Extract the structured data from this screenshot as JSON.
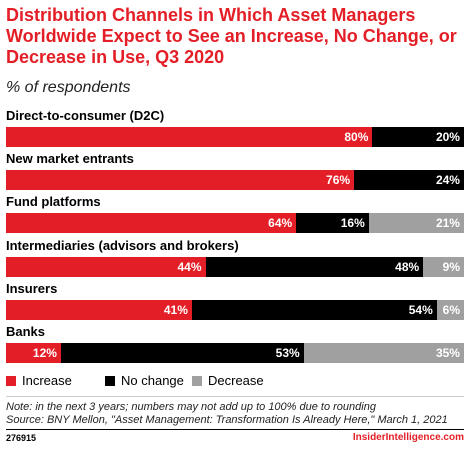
{
  "header": {
    "title": "Distribution Channels in Which Asset Managers Worldwide Expect to See an Increase, No Change, or Decrease in Use, Q3 2020",
    "subtitle": "% of respondents"
  },
  "colors": {
    "increase": "#e41e26",
    "no_change": "#000000",
    "decrease": "#a0a0a0",
    "title": "#e41e26"
  },
  "chart_data": {
    "type": "bar",
    "stacked": true,
    "orientation": "horizontal",
    "categories": [
      "Direct-to-consumer (D2C)",
      "New market entrants",
      "Fund platforms",
      "Intermediaries (advisors and brokers)",
      "Insurers",
      "Banks"
    ],
    "series": [
      {
        "name": "Increase",
        "values": [
          80,
          76,
          64,
          44,
          41,
          12
        ]
      },
      {
        "name": "No change",
        "values": [
          20,
          24,
          16,
          48,
          54,
          53
        ]
      },
      {
        "name": "Decrease",
        "values": [
          0,
          0,
          21,
          9,
          6,
          35
        ]
      }
    ],
    "labels": [
      [
        "80%",
        "20%",
        ""
      ],
      [
        "76%",
        "24%",
        ""
      ],
      [
        "64%",
        "16%",
        "21%"
      ],
      [
        "44%",
        "48%",
        "9%"
      ],
      [
        "41%",
        "54%",
        "6%"
      ],
      [
        "12%",
        "53%",
        "35%"
      ]
    ],
    "unit": "%",
    "legend_position": "bottom-left"
  },
  "legend": [
    {
      "label": "Increase",
      "color": "#e41e26"
    },
    {
      "label": "No change",
      "color": "#000000"
    },
    {
      "label": "Decrease",
      "color": "#a0a0a0"
    }
  ],
  "footer": {
    "note": "Note: in the next 3 years; numbers may not add up to 100% due to rounding",
    "source": "Source: BNY Mellon, \"Asset Management: Transformation Is Already Here,\" March 1, 2021",
    "id": "276915",
    "brand": "InsiderIntelligence.com"
  }
}
